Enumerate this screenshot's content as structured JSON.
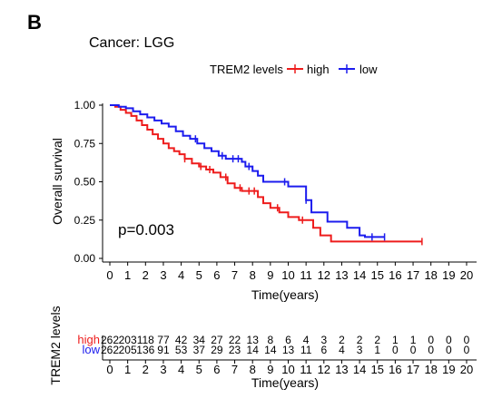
{
  "panel_label": "B",
  "chart_data": {
    "type": "line",
    "subtype": "kaplan-meier",
    "title": "Cancer: LGG",
    "legend": {
      "title": "TREM2 levels",
      "placement": "top",
      "entries": [
        {
          "name": "high",
          "color": "#ee1c1c"
        },
        {
          "name": "low",
          "color": "#1c1cee"
        }
      ]
    },
    "annotation": "p=0.003",
    "xlabel": "Time(years)",
    "ylabel": "Overall survival",
    "xlim": [
      0,
      20
    ],
    "ylim": [
      0,
      1
    ],
    "x_ticks": [
      "0",
      "1",
      "2",
      "3",
      "4",
      "5",
      "6",
      "7",
      "8",
      "9",
      "10",
      "11",
      "12",
      "13",
      "14",
      "15",
      "16",
      "17",
      "18",
      "19",
      "20"
    ],
    "y_ticks": [
      "0.00",
      "0.25",
      "0.50",
      "0.75",
      "1.00"
    ],
    "grid": false,
    "series": [
      {
        "name": "high",
        "color": "#ee1c1c",
        "steps": [
          [
            0,
            1.0
          ],
          [
            0.3,
            0.99
          ],
          [
            0.6,
            0.97
          ],
          [
            0.9,
            0.95
          ],
          [
            1.2,
            0.93
          ],
          [
            1.5,
            0.9
          ],
          [
            1.8,
            0.87
          ],
          [
            2.1,
            0.84
          ],
          [
            2.4,
            0.81
          ],
          [
            2.7,
            0.78
          ],
          [
            3.0,
            0.75
          ],
          [
            3.3,
            0.72
          ],
          [
            3.6,
            0.7
          ],
          [
            3.9,
            0.68
          ],
          [
            4.2,
            0.65
          ],
          [
            4.6,
            0.62
          ],
          [
            5.0,
            0.6
          ],
          [
            5.4,
            0.58
          ],
          [
            5.8,
            0.56
          ],
          [
            6.2,
            0.53
          ],
          [
            6.6,
            0.49
          ],
          [
            7.0,
            0.46
          ],
          [
            7.4,
            0.44
          ],
          [
            8.3,
            0.4
          ],
          [
            8.6,
            0.36
          ],
          [
            9.0,
            0.33
          ],
          [
            9.5,
            0.3
          ],
          [
            10.0,
            0.27
          ],
          [
            10.6,
            0.25
          ],
          [
            11.4,
            0.2
          ],
          [
            11.8,
            0.15
          ],
          [
            12.4,
            0.11
          ],
          [
            17.5,
            0.11
          ]
        ],
        "censors": [
          4.2,
          5.1,
          5.6,
          6.5,
          7.3,
          7.8,
          8.1,
          9.4,
          10.8,
          17.5
        ]
      },
      {
        "name": "low",
        "color": "#1c1cee",
        "steps": [
          [
            0,
            1.0
          ],
          [
            0.5,
            0.99
          ],
          [
            0.9,
            0.98
          ],
          [
            1.3,
            0.96
          ],
          [
            1.7,
            0.94
          ],
          [
            2.1,
            0.92
          ],
          [
            2.5,
            0.9
          ],
          [
            2.9,
            0.88
          ],
          [
            3.3,
            0.86
          ],
          [
            3.7,
            0.83
          ],
          [
            4.1,
            0.8
          ],
          [
            4.5,
            0.78
          ],
          [
            4.9,
            0.75
          ],
          [
            5.3,
            0.72
          ],
          [
            5.7,
            0.7
          ],
          [
            6.1,
            0.67
          ],
          [
            6.5,
            0.65
          ],
          [
            7.4,
            0.63
          ],
          [
            7.6,
            0.6
          ],
          [
            8.0,
            0.57
          ],
          [
            8.3,
            0.54
          ],
          [
            8.6,
            0.5
          ],
          [
            10.0,
            0.47
          ],
          [
            11.0,
            0.38
          ],
          [
            11.3,
            0.3
          ],
          [
            12.2,
            0.24
          ],
          [
            13.3,
            0.2
          ],
          [
            14.0,
            0.15
          ],
          [
            14.3,
            0.14
          ],
          [
            15.4,
            0.14
          ]
        ],
        "censors": [
          4.8,
          6.3,
          6.9,
          7.2,
          7.8,
          9.8,
          11.0,
          14.7,
          15.4
        ]
      }
    ]
  },
  "risk_table": {
    "ylabel": "TREM2 levels",
    "xlabel": "Time(years)",
    "rows": [
      {
        "name": "high",
        "color": "#ee1c1c",
        "values": [
          "262",
          "203",
          "118",
          "77",
          "42",
          "34",
          "27",
          "22",
          "13",
          "8",
          "6",
          "4",
          "3",
          "2",
          "2",
          "2",
          "1",
          "1",
          "0",
          "0",
          "0"
        ]
      },
      {
        "name": "low",
        "color": "#1c1cee",
        "values": [
          "262",
          "205",
          "136",
          "91",
          "53",
          "37",
          "29",
          "23",
          "14",
          "14",
          "13",
          "11",
          "6",
          "4",
          "3",
          "1",
          "0",
          "0",
          "0",
          "0",
          "0"
        ]
      }
    ]
  }
}
